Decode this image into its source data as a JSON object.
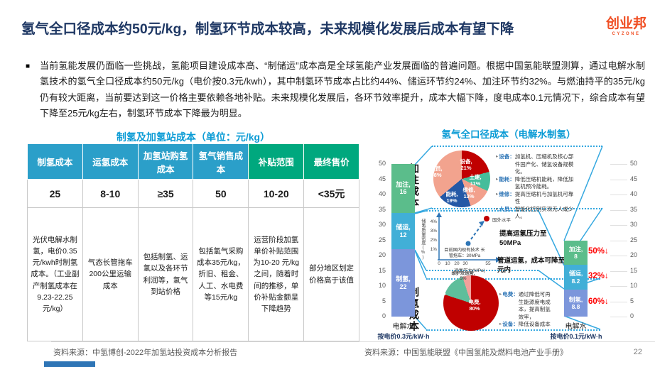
{
  "header": {
    "title": "氢气全口径成本约50元/kg，制氢环节成本较高，未来规模化发展后成本有望下降",
    "logo": "创业邦",
    "logo_sub": "CYZONE"
  },
  "intro": {
    "text": "当前氢能发展仍面临一些挑战，氢能项目建设成本高、“制储运”成本高是全球氢能产业发展面临的普遍问题。根据中国氢能联盟测算，通过电解水制氢技术的氢气全口径成本约50元/kg（电价按0.3元/kwh），其中制氢环节成本占比约44%、储运环节约24%、加注环节约32%。与燃油持平的35元/kg仍有较大距离，当前要达到这一价格主要依赖各地补贴。未来规模化发展后，各环节效率提升，成本大幅下降，度电成本0.1元情况下，综合成本有望下降至25元/kg左右，制氢环节成本下降最为明显。"
  },
  "table_section": {
    "title": "制氢及加氢站成本（单位：元/kg）",
    "columns": [
      "制氢成本",
      "运氢成本",
      "加氢站购氢成本",
      "氢气销售成本",
      "补贴范围",
      "最终售价"
    ],
    "header_colors": [
      "#2B9FC9",
      "#2B9FC9",
      "#2B9FC9",
      "#2B9FC9",
      "#00A87E",
      "#00A87E"
    ],
    "values": [
      "25",
      "8-10",
      "≥35",
      "50",
      "10-20",
      "<35元"
    ],
    "descriptions": [
      "光伏电解水制氢，电价0.35元/kwh时制氢成本。（工业副产制氢成本在9.23-22.25元/kg）",
      "气态长管拖车200公里运输成本",
      "包括制氢、运氢以及各环节利润等，氢气到站价格",
      "包括氢气采购成本35元/kg，折旧、租金、人工、水电费等15元/kg",
      "运营阶段加氢单价补贴范围为10-20 元/kg之间，随着时间的推移，单价补贴金额呈下降趋势",
      "部分地区划定价格高于该值"
    ]
  },
  "chart_section": {
    "title": "氢气全口径成本（电解水制氢）",
    "label_refuel": "加注成本",
    "label_produce": "制氢成本",
    "refuel_bullets": [
      {
        "key": "设备：",
        "text": "加氢机、压缩机及核心部件国产化、储氢设备规模化。"
      },
      {
        "key": "能耗：",
        "text": "降低压缩机能耗，降低加氢机预冷能耗。"
      },
      {
        "key": "维修：",
        "text": "提高压缩机与加氢机可靠性"
      },
      {
        "key": "人员：",
        "text": "智能化控制实现无人或少人。"
      }
    ],
    "produce_bullets": [
      {
        "key": "电费：",
        "text": "通过降低可再生能源度电成本，提高制氢效率，"
      },
      {
        "key": "设备：",
        "text": "降低设备成本"
      }
    ]
  },
  "chart_data": [
    {
      "type": "bar",
      "stacked": true,
      "id": "bar-current",
      "categories": [
        "电解水"
      ],
      "ylim": [
        0,
        50
      ],
      "note": "按电价0.3元/kW·h",
      "series": [
        {
          "name": "制氢",
          "values": [
            22
          ],
          "color": "#7C96DB"
        },
        {
          "name": "储运",
          "values": [
            12
          ],
          "color": "#41AFD7"
        },
        {
          "name": "加注",
          "values": [
            16
          ],
          "color": "#5BBD8B"
        }
      ]
    },
    {
      "type": "pie",
      "id": "pie-refuel",
      "title": "加注成本",
      "slices": [
        {
          "label": "设备",
          "value": 21,
          "color": "#C00000"
        },
        {
          "label": "土建",
          "value": 11,
          "color": "#45BD9B"
        },
        {
          "label": "维修",
          "value": 13,
          "color": "#F2A08C"
        },
        {
          "label": "能耗",
          "value": 19,
          "color": "#2458A6"
        },
        {
          "label": "人员",
          "value": 38,
          "color": "#F2A38E"
        }
      ]
    },
    {
      "type": "scatter",
      "id": "transport-pressure-chart",
      "xlabel": "运氢压力(MPa)",
      "ylabel": "储氢质量密度(%)",
      "x_ticks": [
        "0",
        "10",
        "20",
        "30",
        "55"
      ],
      "y_ticks": [
        "1%",
        "2%",
        "3%",
        "4%"
      ],
      "points": [
        {
          "label": "目前国内现有技术 长管拖车：30MPa",
          "x": 30,
          "y": 1.8,
          "color": "#2E75B6"
        },
        {
          "label": "国外水平",
          "x": 55,
          "y": 4.5,
          "color": "#C00000"
        }
      ],
      "annotations": [
        "提高运氢压力至50MPa",
        "管道运氢，成本可降至2元内"
      ]
    },
    {
      "type": "pie",
      "id": "pie-produce",
      "title": "制氢成本",
      "caption": "度电价格*电耗",
      "slices": [
        {
          "label": "电费",
          "value": 80,
          "color": "#C00000"
        },
        {
          "label": "设备",
          "value": 15,
          "color": "#5EBE9B"
        },
        {
          "label": "维护及运营",
          "value": 5,
          "color": "#F2A09B"
        }
      ]
    },
    {
      "type": "bar",
      "stacked": true,
      "id": "bar-future",
      "categories": [
        "电解水"
      ],
      "ylim": [
        0,
        50
      ],
      "note": "按电价0.1元/kW·h",
      "series": [
        {
          "name": "制氢",
          "values": [
            8.8
          ],
          "color": "#7C96DB",
          "reduction": "60%"
        },
        {
          "name": "储运",
          "values": [
            8.2
          ],
          "color": "#41AFD7",
          "reduction": "32%"
        },
        {
          "name": "加注",
          "values": [
            8
          ],
          "color": "#5BBD8B",
          "reduction": "50%"
        }
      ]
    }
  ],
  "theme": {
    "title_color": "#1F3864",
    "section_title_color": "#0A9BD5",
    "logo_color": "#F04E23",
    "connector_color": "#35A8E0",
    "reduction_color": "#FF0000"
  },
  "footer": {
    "source_left": "资料来源：中氢博创-2022年加氢站投资成本分析报告",
    "source_right": "资料来源：中国氢能联盟《中国氢能及燃料电池产业手册》",
    "page": "22"
  }
}
